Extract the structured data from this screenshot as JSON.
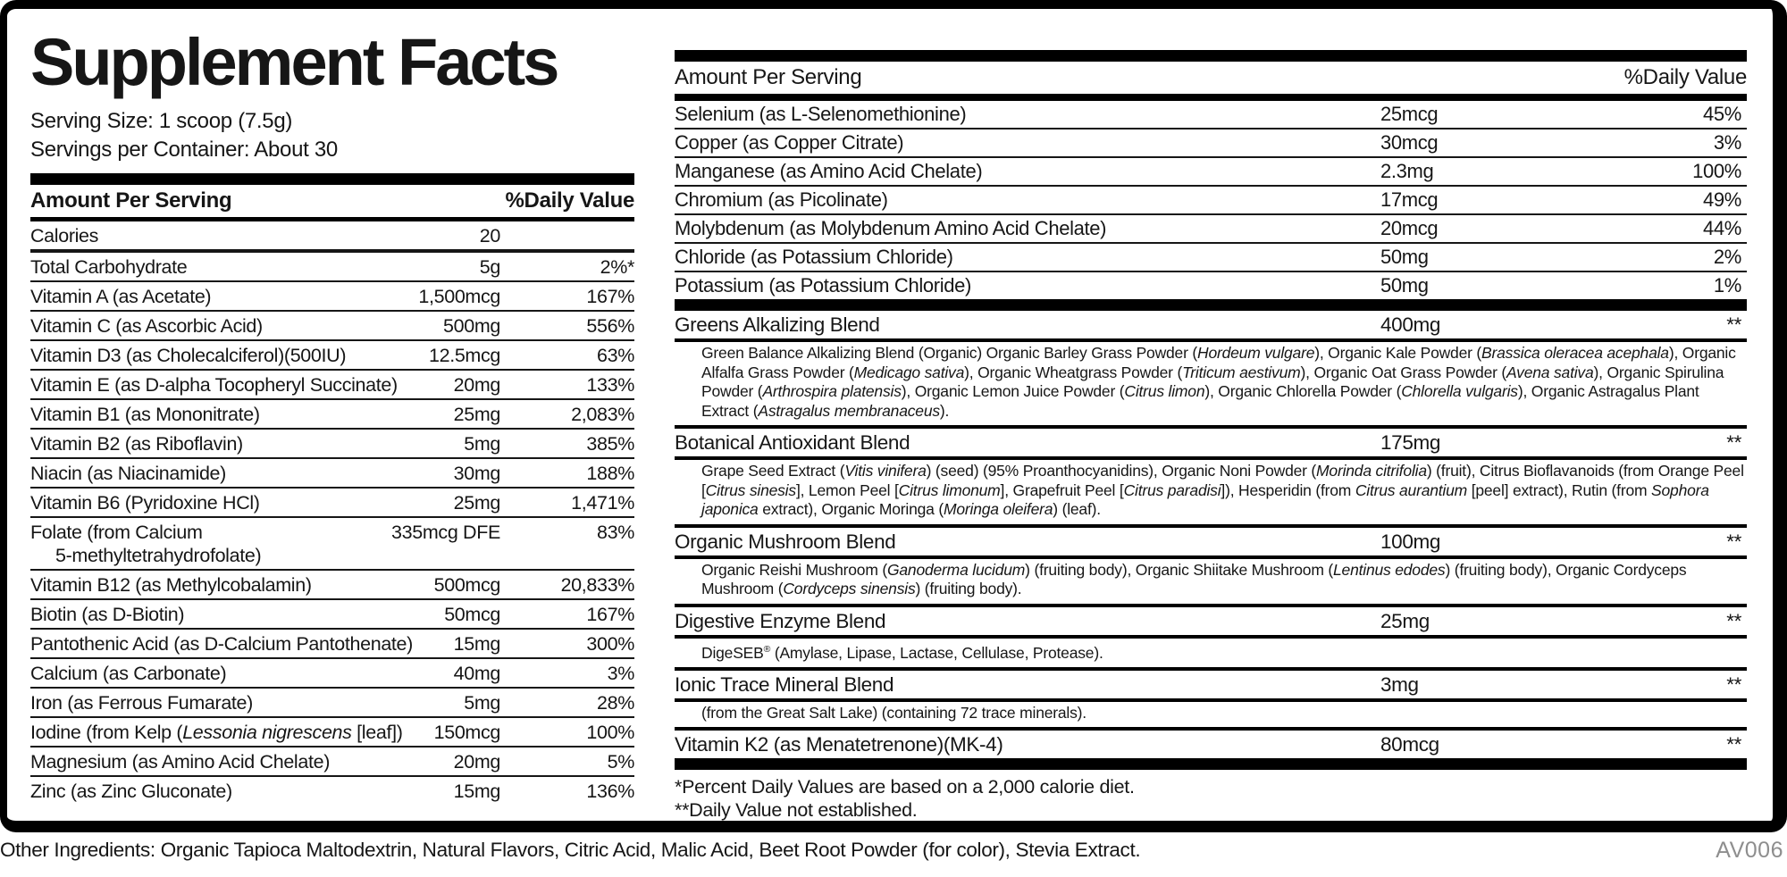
{
  "title": "Supplement Facts",
  "serving": {
    "size": "Serving Size: 1 scoop (7.5g)",
    "per_container": "Servings per Container: About 30"
  },
  "header": {
    "amount": "Amount Per Serving",
    "daily_value": "%Daily Value"
  },
  "left_rows": [
    {
      "name": "Calories",
      "amount": "20",
      "dv": ""
    },
    {
      "name": "Total Carbohydrate",
      "amount": "5g",
      "dv": "2%*"
    },
    {
      "name": "Vitamin A (as Acetate)",
      "amount": "1,500mcg",
      "dv": "167%"
    },
    {
      "name": "Vitamin C (as Ascorbic Acid)",
      "amount": "500mg",
      "dv": "556%"
    },
    {
      "name": "Vitamin D3 (as Cholecalciferol)(500IU)",
      "amount": "12.5mcg",
      "dv": "63%"
    },
    {
      "name": "Vitamin E (as D-alpha Tocopheryl Succinate)",
      "amount": "20mg",
      "dv": "133%"
    },
    {
      "name": "Vitamin B1 (as Mononitrate)",
      "amount": "25mg",
      "dv": "2,083%"
    },
    {
      "name": "Vitamin B2 (as Riboflavin)",
      "amount": "5mg",
      "dv": "385%"
    },
    {
      "name": "Niacin (as Niacinamide)",
      "amount": "30mg",
      "dv": "188%"
    },
    {
      "name": "Vitamin B6 (Pyridoxine HCl)",
      "amount": "25mg",
      "dv": "1,471%"
    },
    {
      "name": "Folate (from Calcium",
      "name2": "5-methyltetrahydrofolate)",
      "amount": "335mcg DFE",
      "dv": "83%"
    },
    {
      "name": "Vitamin B12 (as Methylcobalamin)",
      "amount": "500mcg",
      "dv": "20,833%"
    },
    {
      "name": "Biotin (as D-Biotin)",
      "amount": "50mcg",
      "dv": "167%"
    },
    {
      "name": "Pantothenic Acid (as D-Calcium Pantothenate)",
      "amount": "15mg",
      "dv": "300%"
    },
    {
      "name": "Calcium (as Carbonate)",
      "amount": "40mg",
      "dv": "3%"
    },
    {
      "name": "Iron (as Ferrous Fumarate)",
      "amount": "5mg",
      "dv": "28%"
    },
    {
      "name": "Iodine (from Kelp (_Lessonia nigrescens_ [leaf])",
      "amount": "150mcg",
      "dv": "100%"
    },
    {
      "name": "Magnesium (as Amino Acid Chelate)",
      "amount": "20mg",
      "dv": "5%"
    },
    {
      "name": "Zinc (as Zinc Gluconate)",
      "amount": "15mg",
      "dv": "136%"
    }
  ],
  "right_rows": [
    {
      "name": "Selenium (as L-Selenomethionine)",
      "amount": "25mcg",
      "dv": "45%"
    },
    {
      "name": "Copper (as Copper Citrate)",
      "amount": "30mcg",
      "dv": "3%"
    },
    {
      "name": "Manganese (as Amino Acid Chelate)",
      "amount": "2.3mg",
      "dv": "100%"
    },
    {
      "name": "Chromium (as Picolinate)",
      "amount": "17mcg",
      "dv": "49%"
    },
    {
      "name": "Molybdenum (as Molybdenum Amino Acid Chelate)",
      "amount": "20mcg",
      "dv": "44%"
    },
    {
      "name": "Chloride (as Potassium Chloride)",
      "amount": "50mg",
      "dv": "2%"
    },
    {
      "name": "Potassium (as Potassium Chloride)",
      "amount": "50mg",
      "dv": "1%"
    }
  ],
  "blends": [
    {
      "name": "Greens Alkalizing Blend",
      "amount": "400mg",
      "dv": "**",
      "desc": "Green Balance Alkalizing Blend (Organic) Organic Barley Grass Powder (_Hordeum vulgare_), Organic Kale Powder (_Brassica oleracea acephala_), Organic Alfalfa Grass Powder (_Medicago sativa_), Organic Wheatgrass Powder (_Triticum aestivum_), Organic Oat Grass Powder (_Avena sativa_), Organic Spirulina Powder (_Arthrospira platensis_), Organic Lemon Juice Powder (_Citrus limon_), Organic Chlorella Powder (_Chlorella vulgaris_), Organic Astragalus Plant Extract (_Astragalus membranaceus_)."
    },
    {
      "name": "Botanical Antioxidant Blend",
      "amount": "175mg",
      "dv": "**",
      "desc": "Grape Seed Extract (_Vitis vinifera_) (seed) (95% Proanthocyanidins), Organic Noni Powder (_Morinda citrifolia_) (fruit), Citrus Bioflavanoids (from Orange Peel [_Citrus sinesis_], Lemon Peel [_Citrus limonum_], Grapefruit Peel [_Citrus paradisi_]), Hesperidin (from _Citrus aurantium_ [peel] extract), Rutin (from _Sophora japonica_ extract), Organic Moringa (_Moringa oleifera_) (leaf)."
    },
    {
      "name": "Organic Mushroom Blend",
      "amount": "100mg",
      "dv": "**",
      "desc": "Organic Reishi Mushroom (_Ganoderma lucidum_) (fruiting body), Organic Shiitake Mushroom (_Lentinus edodes_) (fruiting body), Organic Cordyceps Mushroom (_Cordyceps sinensis_) (fruiting body)."
    },
    {
      "name": "Digestive Enzyme Blend",
      "amount": "25mg",
      "dv": "**",
      "desc": "DigeSEB® (Amylase, Lipase, Lactase, Cellulase, Protease)."
    },
    {
      "name": "Ionic Trace Mineral Blend",
      "amount": "3mg",
      "dv": "**",
      "desc": "(from the Great Salt Lake) (containing 72 trace minerals)."
    },
    {
      "name": "Vitamin K2 (as Menatetrenone)(MK-4)",
      "amount": "80mcg",
      "dv": "**",
      "desc": ""
    }
  ],
  "footnotes": [
    "*Percent Daily Values are based on a 2,000 calorie diet.",
    "**Daily Value not established."
  ],
  "other_ingredients": "Other Ingredients: Organic Tapioca Maltodextrin, Natural Flavors, Citric Acid, Malic Acid, Beet Root Powder (for color), Stevia Extract.",
  "product_code": "AV006",
  "colors": {
    "text": "#161616",
    "border": "#000000",
    "muted": "#8e8e8e",
    "background": "#ffffff"
  }
}
